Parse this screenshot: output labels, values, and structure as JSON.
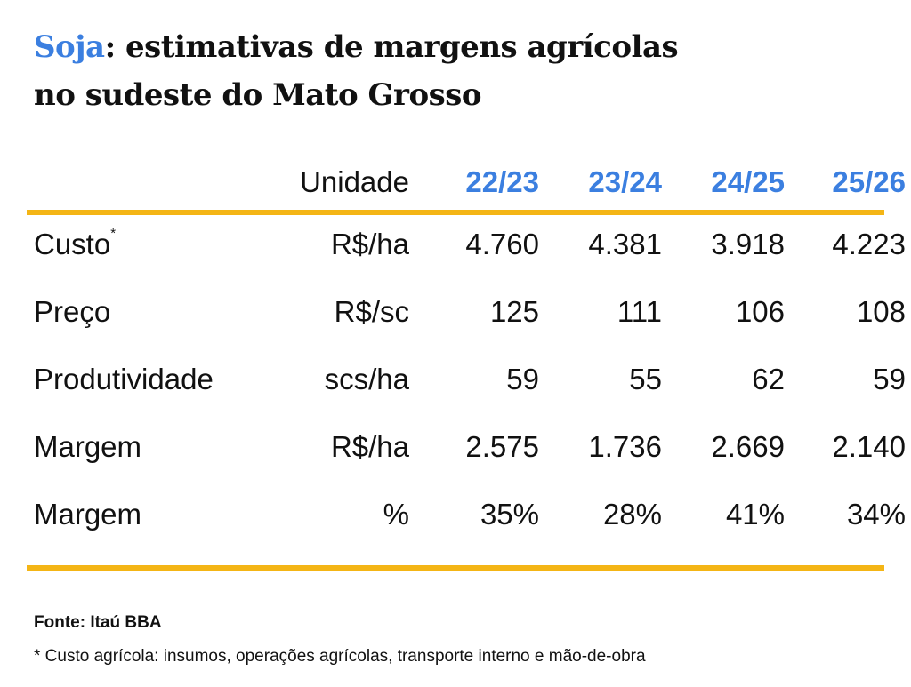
{
  "title": {
    "highlight": "Soja",
    "rest_line1": ": estimativas de margens agrícolas",
    "line2": "no sudeste do Mato Grosso"
  },
  "colors": {
    "accent_blue": "#3b7fe0",
    "rule_yellow": "#f4b515",
    "text": "#111111"
  },
  "table": {
    "headers": {
      "unit": "Unidade",
      "years": [
        "22/23",
        "23/24",
        "24/25",
        "25/26"
      ]
    },
    "rows": [
      {
        "label": "Custo",
        "marker": "*",
        "unit": "R$/ha",
        "values": [
          "4.760",
          "4.381",
          "3.918",
          "4.223"
        ]
      },
      {
        "label": "Preço",
        "unit": "R$/sc",
        "values": [
          "125",
          "111",
          "106",
          "108"
        ]
      },
      {
        "label": "Produtividade",
        "unit": "scs/ha",
        "values": [
          "59",
          "55",
          "62",
          "59"
        ]
      },
      {
        "label": "Margem",
        "unit": "R$/ha",
        "values": [
          "2.575",
          "1.736",
          "2.669",
          "2.140"
        ]
      },
      {
        "label": "Margem",
        "unit": "%",
        "values": [
          "35%",
          "28%",
          "41%",
          "34%"
        ]
      }
    ]
  },
  "footer": {
    "source": "Fonte: Itaú BBA",
    "note": "* Custo agrícola: insumos, operações agrícolas, transporte interno e mão-de-obra"
  }
}
